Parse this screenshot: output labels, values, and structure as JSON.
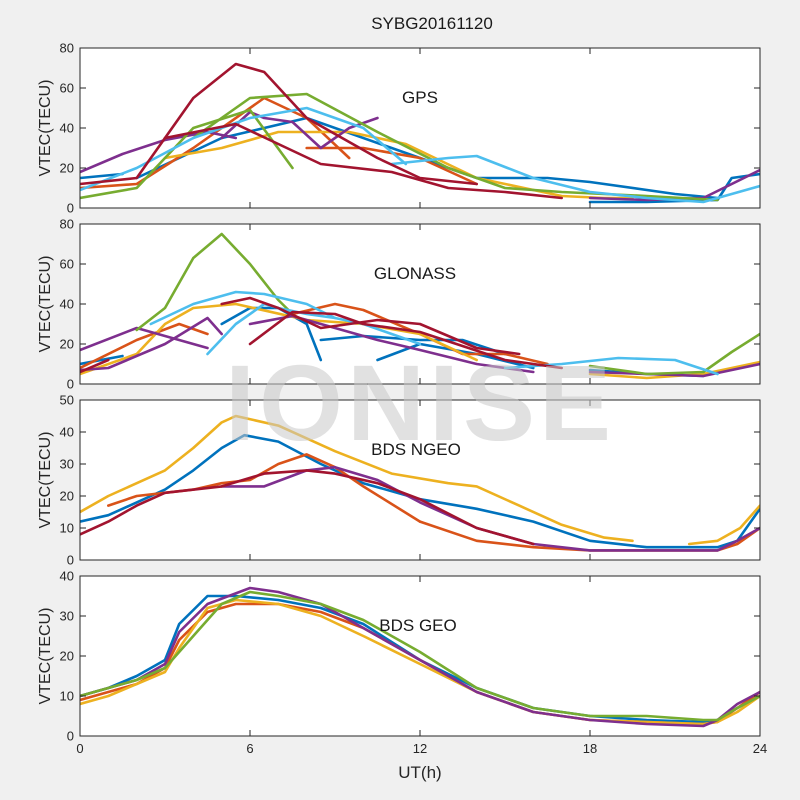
{
  "figure": {
    "title": "SYBG20161120",
    "xlabel": "UT(h)",
    "watermark": "IONISE"
  },
  "chart_data": [
    {
      "type": "line",
      "label": "GPS",
      "ylabel": "VTEC(TECU)",
      "xlim": [
        0,
        24
      ],
      "ylim": [
        0,
        80
      ],
      "xticks": [
        0,
        6,
        12,
        18,
        24
      ],
      "yticks": [
        0,
        20,
        40,
        60,
        80
      ],
      "grid": false,
      "series": [
        {
          "color": "#0072BD",
          "x": [
            0,
            1.5
          ],
          "y": [
            15,
            17
          ]
        },
        {
          "color": "#0072BD",
          "x": [
            2,
            5,
            8,
            11,
            14,
            16.5,
            18,
            21,
            22.5
          ],
          "y": [
            15,
            35,
            45,
            30,
            15,
            15,
            13,
            7,
            5
          ]
        },
        {
          "color": "#0072BD",
          "x": [
            18,
            20,
            22.5,
            23,
            24
          ],
          "y": [
            3,
            3,
            4,
            15,
            17
          ]
        },
        {
          "color": "#D95319",
          "x": [
            0,
            2,
            4,
            6.5,
            8,
            9.5
          ],
          "y": [
            10,
            12,
            30,
            55,
            45,
            25
          ]
        },
        {
          "color": "#D95319",
          "x": [
            8,
            10,
            12,
            14
          ],
          "y": [
            30,
            30,
            25,
            12
          ]
        },
        {
          "color": "#EDB120",
          "x": [
            3,
            5,
            7,
            9.5,
            11.5,
            14,
            17,
            18.5,
            19.5
          ],
          "y": [
            25,
            30,
            38,
            38,
            32,
            15,
            6,
            5,
            5
          ]
        },
        {
          "color": "#7E2F8E",
          "x": [
            0,
            1.5,
            3,
            4.5,
            5.5
          ],
          "y": [
            18,
            27,
            34,
            38,
            35
          ]
        },
        {
          "color": "#7E2F8E",
          "x": [
            5,
            6,
            6.5,
            7.5,
            8.5,
            9.5,
            10.5
          ],
          "y": [
            35,
            48,
            45,
            43,
            30,
            40,
            45
          ]
        },
        {
          "color": "#7E2F8E",
          "x": [
            18,
            20,
            22,
            24
          ],
          "y": [
            5,
            4,
            5,
            19
          ]
        },
        {
          "color": "#77AC30",
          "x": [
            0,
            2,
            4,
            6,
            7.5
          ],
          "y": [
            5,
            10,
            40,
            49,
            20
          ]
        },
        {
          "color": "#77AC30",
          "x": [
            4,
            6,
            8,
            10.5,
            13,
            15,
            17,
            20,
            22.5
          ],
          "y": [
            35,
            55,
            57,
            38,
            20,
            10,
            8,
            6,
            4
          ]
        },
        {
          "color": "#4DBEEE",
          "x": [
            0,
            2,
            4,
            6,
            8,
            10,
            11.5
          ],
          "y": [
            9,
            20,
            35,
            45,
            50,
            40,
            22
          ]
        },
        {
          "color": "#4DBEEE",
          "x": [
            11,
            13,
            14,
            16,
            18,
            20,
            22,
            24
          ],
          "y": [
            22,
            25,
            26,
            15,
            8,
            5,
            3,
            11
          ]
        },
        {
          "color": "#A2142F",
          "x": [
            0,
            2,
            4,
            5.5,
            6.5,
            8,
            10.5,
            12,
            14
          ],
          "y": [
            12,
            15,
            55,
            72,
            68,
            45,
            25,
            15,
            12
          ]
        },
        {
          "color": "#A2142F",
          "x": [
            3,
            5.5,
            7,
            8.5,
            11,
            13,
            15,
            17
          ],
          "y": [
            35,
            42,
            32,
            22,
            18,
            10,
            8,
            5
          ]
        }
      ]
    },
    {
      "type": "line",
      "label": "GLONASS",
      "ylabel": "VTEC(TECU)",
      "xlim": [
        0,
        24
      ],
      "ylim": [
        0,
        80
      ],
      "xticks": [
        0,
        6,
        12,
        18,
        24
      ],
      "yticks": [
        0,
        20,
        40,
        60,
        80
      ],
      "grid": false,
      "series": [
        {
          "color": "#0072BD",
          "x": [
            0,
            1.5
          ],
          "y": [
            10,
            14
          ]
        },
        {
          "color": "#0072BD",
          "x": [
            5,
            6,
            7,
            8,
            8.5
          ],
          "y": [
            30,
            38,
            38,
            30,
            12
          ]
        },
        {
          "color": "#0072BD",
          "x": [
            8.5,
            10,
            12,
            13.5,
            15
          ],
          "y": [
            22,
            24,
            22,
            22,
            15
          ]
        },
        {
          "color": "#0072BD",
          "x": [
            10.5,
            12,
            14,
            16
          ],
          "y": [
            12,
            20,
            15,
            8
          ]
        },
        {
          "color": "#0072BD",
          "x": [
            18,
            20,
            22
          ],
          "y": [
            7,
            5,
            4
          ]
        },
        {
          "color": "#D95319",
          "x": [
            0,
            2,
            3.5,
            4.5
          ],
          "y": [
            8,
            22,
            30,
            25
          ]
        },
        {
          "color": "#D95319",
          "x": [
            7.5,
            9,
            10,
            12,
            13.5,
            15,
            16.5
          ],
          "y": [
            35,
            40,
            37,
            25,
            15,
            15,
            10
          ]
        },
        {
          "color": "#EDB120",
          "x": [
            0,
            2,
            3,
            4,
            5.5,
            8,
            10,
            12,
            14
          ],
          "y": [
            5,
            15,
            30,
            38,
            40,
            32,
            30,
            25,
            12
          ]
        },
        {
          "color": "#EDB120",
          "x": [
            18,
            20,
            22,
            24
          ],
          "y": [
            5,
            3,
            5,
            11
          ]
        },
        {
          "color": "#7E2F8E",
          "x": [
            0,
            1,
            3,
            4.5,
            5
          ],
          "y": [
            7,
            8,
            20,
            33,
            25
          ]
        },
        {
          "color": "#7E2F8E",
          "x": [
            6,
            7.5,
            9,
            10.5,
            12,
            14,
            16
          ],
          "y": [
            30,
            34,
            28,
            22,
            17,
            10,
            6
          ]
        },
        {
          "color": "#7E2F8E",
          "x": [
            0,
            2,
            4,
            4.5
          ],
          "y": [
            17,
            28,
            20,
            18
          ]
        },
        {
          "color": "#7E2F8E",
          "x": [
            18,
            20,
            22,
            24
          ],
          "y": [
            6,
            5,
            4,
            10
          ]
        },
        {
          "color": "#77AC30",
          "x": [
            2,
            3,
            4,
            5,
            6,
            7,
            7.5
          ],
          "y": [
            27,
            38,
            63,
            75,
            60,
            42,
            35
          ]
        },
        {
          "color": "#77AC30",
          "x": [
            18,
            20,
            22,
            23,
            24
          ],
          "y": [
            9,
            5,
            6,
            16,
            25
          ]
        },
        {
          "color": "#4DBEEE",
          "x": [
            2.5,
            4,
            5.5,
            6.5,
            8,
            9
          ],
          "y": [
            30,
            40,
            46,
            45,
            40,
            33
          ]
        },
        {
          "color": "#4DBEEE",
          "x": [
            4.5,
            5.5,
            6.5,
            7,
            8,
            9,
            10,
            11,
            12
          ],
          "y": [
            15,
            30,
            40,
            38,
            35,
            33,
            30,
            25,
            20
          ]
        },
        {
          "color": "#4DBEEE",
          "x": [
            15,
            17,
            19,
            21,
            22.5
          ],
          "y": [
            8,
            10,
            13,
            12,
            5
          ]
        },
        {
          "color": "#A2142F",
          "x": [
            0,
            1
          ],
          "y": [
            6,
            12
          ]
        },
        {
          "color": "#A2142F",
          "x": [
            5,
            6,
            7,
            8.5,
            9.5,
            10.5,
            12,
            14,
            15.5
          ],
          "y": [
            40,
            43,
            38,
            28,
            30,
            32,
            30,
            18,
            15
          ]
        },
        {
          "color": "#A2142F",
          "x": [
            6,
            7.5,
            9,
            10,
            12,
            15,
            17
          ],
          "y": [
            20,
            36,
            35,
            30,
            26,
            12,
            8
          ]
        }
      ]
    },
    {
      "type": "line",
      "label": "BDS NGEO",
      "ylabel": "VTEC(TECU)",
      "xlim": [
        0,
        24
      ],
      "ylim": [
        0,
        50
      ],
      "xticks": [
        0,
        6,
        12,
        18,
        24
      ],
      "yticks": [
        0,
        10,
        20,
        30,
        40,
        50
      ],
      "grid": false,
      "series": [
        {
          "color": "#0072BD",
          "x": [
            0,
            1,
            2,
            3,
            4,
            5,
            5.8,
            7,
            8.5,
            10,
            12,
            14,
            16,
            18,
            20,
            22.5,
            23.2,
            24
          ],
          "y": [
            12,
            14,
            18,
            22,
            28,
            35,
            39,
            37,
            30,
            24,
            19,
            16,
            12,
            6,
            4,
            4,
            6,
            16
          ]
        },
        {
          "color": "#D95319",
          "x": [
            1,
            2,
            3,
            4,
            5,
            6,
            7,
            8,
            9,
            10,
            12
          ],
          "y": [
            17,
            20,
            21,
            22,
            24,
            25,
            30,
            33,
            29,
            23,
            12
          ]
        },
        {
          "color": "#D95319",
          "x": [
            12,
            14,
            16,
            18,
            20,
            22.5,
            23.2,
            24
          ],
          "y": [
            12,
            6,
            4,
            3,
            3,
            3,
            5,
            10
          ]
        },
        {
          "color": "#EDB120",
          "x": [
            0,
            1,
            2,
            3,
            4,
            5,
            5.5,
            7,
            9,
            11,
            13,
            14,
            15.5,
            17,
            18.5,
            19.5
          ],
          "y": [
            15,
            20,
            24,
            28,
            35,
            43,
            45,
            42,
            34,
            27,
            24,
            23,
            17,
            11,
            7,
            6
          ]
        },
        {
          "color": "#EDB120",
          "x": [
            21.5,
            22.5,
            23.3,
            24
          ],
          "y": [
            5,
            6,
            10,
            17
          ]
        },
        {
          "color": "#7E2F8E",
          "x": [
            5,
            6.5,
            8,
            9,
            10.5,
            12,
            14,
            16,
            18,
            20,
            22.5,
            23.2,
            24
          ],
          "y": [
            23,
            23,
            28,
            29,
            25,
            18,
            10,
            5,
            3,
            3,
            3,
            6,
            10
          ]
        },
        {
          "color": "#A2142F",
          "x": [
            0,
            1,
            2,
            3,
            5,
            6.5,
            8,
            9,
            10.5,
            12,
            14,
            16
          ],
          "y": [
            8,
            12,
            17,
            21,
            23,
            27,
            28,
            27,
            24,
            19,
            10,
            5
          ]
        }
      ]
    },
    {
      "type": "line",
      "label": "BDS GEO",
      "ylabel": "VTEC(TECU)",
      "xlim": [
        0,
        24
      ],
      "ylim": [
        0,
        40
      ],
      "xticks": [
        0,
        6,
        12,
        18,
        24
      ],
      "yticks": [
        0,
        10,
        20,
        30,
        40
      ],
      "grid": false,
      "series": [
        {
          "color": "#0072BD",
          "x": [
            0,
            1,
            2,
            3,
            3.5,
            4.5,
            5.5,
            7,
            8.5,
            10,
            12,
            14,
            16,
            18,
            20,
            22,
            22.5,
            23.2,
            24
          ],
          "y": [
            10,
            12,
            15,
            19,
            28,
            35,
            35,
            34,
            32,
            28,
            19,
            12,
            7,
            5,
            4,
            3.5,
            4,
            7,
            10
          ]
        },
        {
          "color": "#D95319",
          "x": [
            0,
            1,
            2,
            3,
            3.5,
            4.5,
            5.5,
            7,
            8.5,
            10,
            12,
            14,
            16,
            18,
            20,
            22,
            22.5,
            23.2,
            24
          ],
          "y": [
            9,
            11,
            13,
            17,
            24,
            31,
            33,
            33,
            31,
            27,
            19,
            11,
            6,
            4,
            3.5,
            3,
            3.5,
            7,
            11
          ]
        },
        {
          "color": "#EDB120",
          "x": [
            0,
            1,
            2,
            3,
            3.5,
            4.5,
            5.5,
            7,
            8.5,
            10,
            12,
            14,
            16,
            18,
            20,
            22,
            22.5,
            23.2,
            24
          ],
          "y": [
            8,
            10,
            13,
            16,
            22,
            32,
            34,
            33,
            30,
            25,
            18,
            11,
            6,
            4,
            3.5,
            3,
            3.5,
            6,
            10
          ]
        },
        {
          "color": "#7E2F8E",
          "x": [
            0,
            1,
            2,
            3,
            3.5,
            4.5,
            6,
            7,
            8.5,
            10,
            12,
            14,
            16,
            18,
            20,
            22,
            22.5,
            23.2,
            24
          ],
          "y": [
            10,
            12,
            14,
            18,
            26,
            33,
            37,
            36,
            33,
            27,
            19,
            11,
            6,
            4,
            3,
            2.5,
            4,
            8,
            11
          ]
        },
        {
          "color": "#77AC30",
          "x": [
            0,
            1,
            2,
            3,
            4,
            5,
            6,
            7,
            8.5,
            10,
            12,
            14,
            16,
            18,
            20,
            22,
            22.5,
            23.2,
            24
          ],
          "y": [
            10,
            12,
            14,
            17,
            25,
            33,
            36,
            35,
            33,
            29,
            21,
            12,
            7,
            5,
            5,
            4,
            4,
            7,
            10
          ]
        }
      ]
    }
  ]
}
